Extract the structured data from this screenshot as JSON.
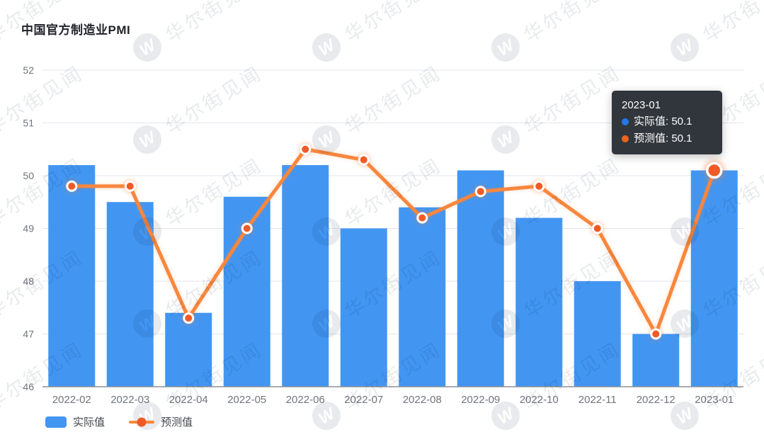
{
  "page": {
    "title": "中国官方制造业PMI"
  },
  "chart_data": {
    "type": "bar+line",
    "title": "中国官方制造业PMI",
    "categories": [
      "2022-02",
      "2022-03",
      "2022-04",
      "2022-05",
      "2022-06",
      "2022-07",
      "2022-08",
      "2022-09",
      "2022-10",
      "2022-11",
      "2022-12",
      "2023-01"
    ],
    "series": [
      {
        "name": "实际值",
        "type": "bar",
        "color": "#4296f2",
        "values": [
          50.2,
          49.5,
          47.4,
          49.6,
          50.2,
          49.0,
          49.4,
          50.1,
          49.2,
          48.0,
          47.0,
          50.1
        ]
      },
      {
        "name": "预测值",
        "type": "line",
        "color": "#f8873c",
        "marker_color": "#f05a28",
        "values": [
          49.8,
          49.8,
          47.3,
          49.0,
          50.5,
          50.3,
          49.2,
          49.7,
          49.8,
          49.0,
          47.0,
          50.1
        ]
      }
    ],
    "ylim": [
      46,
      52
    ],
    "yticks": [
      46,
      47,
      48,
      49,
      50,
      51,
      52
    ],
    "grid": true,
    "legend_position": "bottom-left",
    "highlight_index": 11,
    "grid_color": "#e2e5ec",
    "axis_line_color": "#8b919a",
    "axis_label_color": "#70757d"
  },
  "tooltip": {
    "title": "2023-01",
    "background": "#31363c",
    "items": [
      {
        "label": "实际值",
        "value": 50.1,
        "text": "实际值: 50.1",
        "color": "#2576e9"
      },
      {
        "label": "预测值",
        "value": 50.1,
        "text": "预测值: 50.1",
        "color": "#f0631c"
      }
    ]
  },
  "legend": {
    "items": [
      {
        "label": "实际值",
        "marker": "bar",
        "color": "#4296f2"
      },
      {
        "label": "预测值",
        "marker": "line",
        "color": "#f8873c",
        "dot_color": "#f05a28"
      }
    ]
  },
  "watermark": {
    "text": "华尔街见闻",
    "monogram": "W"
  }
}
